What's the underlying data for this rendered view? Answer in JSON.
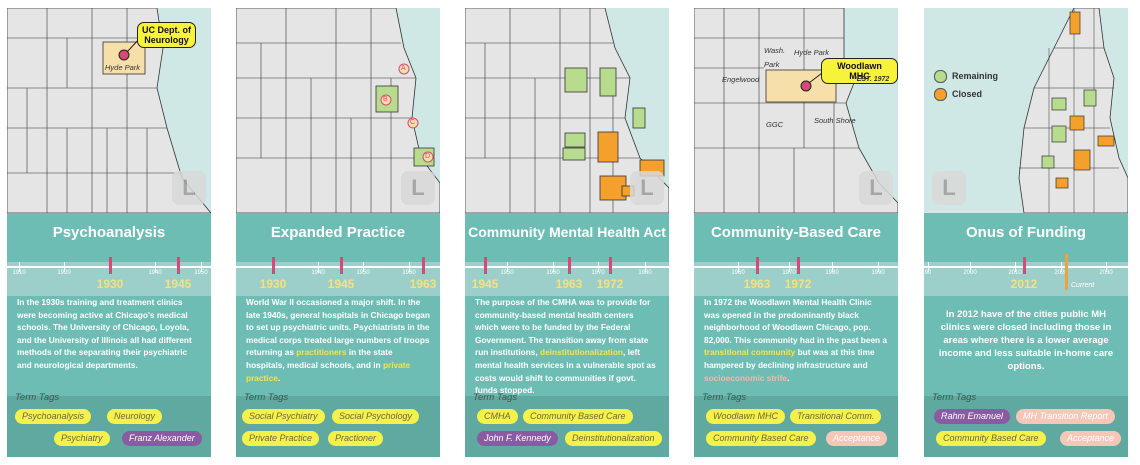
{
  "cards": [
    {
      "title": "Psychoanalysis",
      "ticks": [
        "1910",
        "1920",
        "1940",
        "1950"
      ],
      "markers": [
        "1930",
        "1945"
      ],
      "callout": "UC Dept. of\nNeurology",
      "map_labels": [
        "Hyde Park"
      ],
      "lbutton": "L",
      "desc": "In the 1930s training and treatment clinics were becoming active at Chicago's medical schools. The University of Chicago, Loyola, and the University of Illinois all had different methods of the separating their psychiatric and neurological departments.",
      "tags_header": "Term Tags",
      "tags": [
        "Psychoanalysis",
        "Neurology",
        "Psychiatry",
        "Franz Alexander"
      ]
    },
    {
      "title": "Expanded Practice",
      "ticks": [
        "1940",
        "1950",
        "1960"
      ],
      "markers": [
        "1930",
        "1945",
        "1963"
      ],
      "map_labels": [
        "A",
        "B",
        "C",
        "D"
      ],
      "lbutton": "L",
      "desc_parts": [
        "World War II occasioned a major shift. In the late 1940s, general hospitals in Chicago began to set up psychiatric units. Psychiatrists in the medical corps treated large numbers of troops returning as ",
        "practitioners",
        " in the state hospitals, medical schools, and in ",
        "private practice",
        "."
      ],
      "tags_header": "Term Tags",
      "tags": [
        "Social Psychiatry",
        "Social Psychology",
        "Private Practice",
        "Practioner"
      ]
    },
    {
      "title": "Community Mental Health Act",
      "ticks": [
        "1950",
        "1960",
        "1970",
        "1980"
      ],
      "markers": [
        "1945",
        "1963",
        "1972"
      ],
      "lbutton": "L",
      "desc_parts": [
        "The purpose of the CMHA was to provide for community-based mental health centers which were to be funded by the Federal Government. The transition away from state run institutions, ",
        "deinstitutionalization",
        ", left mental health services in a vulnerable spot as costs would shift to communities if govt. funds stopped."
      ],
      "tags_header": "Term Tags",
      "tags": [
        "CMHA",
        "Community Based Care",
        "John F. Kennedy",
        "Deinstitutionalization"
      ]
    },
    {
      "title": "Community-Based Care",
      "ticks": [
        "1960",
        "1970",
        "1980",
        "1990"
      ],
      "markers": [
        "1963",
        "1972"
      ],
      "callout": "Woodlawn MHC",
      "est": "*EST. 1972",
      "map_labels": [
        "Wash.",
        "Park",
        "Hyde Park",
        "Engelwood",
        "GGC",
        "South Shore"
      ],
      "lbutton": "L",
      "desc_parts": [
        "In 1972 the Woodlawn Mental Health Clinic was opened in the predominantly black neighborhood of Woodlawn Chicago, pop. 82,000. This community had in the past been a ",
        "transitional community",
        " but was at this time hampered by declining infrastructure and ",
        "socioeconomic strife",
        "."
      ],
      "tags_header": "Term Tags",
      "tags": [
        "Woodlawn MHC",
        "Transitional Comm.",
        "Community Based Care",
        "Acceptance"
      ]
    },
    {
      "title": "Onus of Funding",
      "ticks": [
        "90",
        "2000",
        "2010",
        "2020",
        "2030"
      ],
      "markers": [
        "2012"
      ],
      "current": "Current",
      "legend": [
        "Remaining",
        "Closed"
      ],
      "lbutton": "L",
      "desc": "In 2012 have of the cities public MH clinics were closed including those in areas where there is a lower average income and less suitable in-home care options.",
      "tags_header": "Term Tags",
      "tags": [
        "Rahm Emanuel",
        "MH Transition Report",
        "Community Based Care",
        "Acceptance"
      ]
    }
  ],
  "colors": {
    "card": "#6dbdb4",
    "water": "#cfe8e6",
    "land": "#e5e5e5",
    "green": "#b7dc8e",
    "orange": "#f4a02c",
    "highlight": "#f6e544",
    "marker": "#d54a78"
  }
}
